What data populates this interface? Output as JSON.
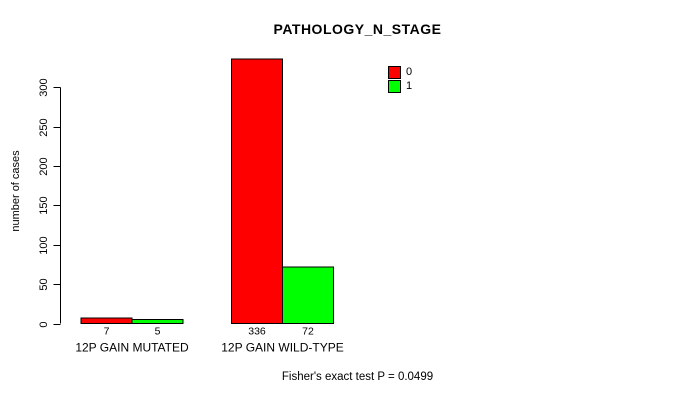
{
  "chart_data": {
    "type": "bar",
    "title": "PATHOLOGY_N_STAGE",
    "ylabel": "number of cases",
    "xlabel": "",
    "categories": [
      "12P GAIN MUTATED",
      "12P GAIN WILD-TYPE"
    ],
    "series": [
      {
        "name": "0",
        "color": "#ff0000",
        "values": [
          7,
          336
        ]
      },
      {
        "name": "1",
        "color": "#00ff00",
        "values": [
          5,
          72
        ]
      }
    ],
    "value_labels": [
      [
        "7",
        "336"
      ],
      [
        "5",
        "72"
      ]
    ],
    "yticks": [
      0,
      50,
      100,
      150,
      200,
      250,
      300
    ],
    "ylim": [
      0,
      340
    ],
    "grid": false,
    "legend_position": "top-right",
    "annotation": "Fisher's exact test P = 0.0499",
    "axis_color": "#000000",
    "background_color": "#ffffff"
  }
}
